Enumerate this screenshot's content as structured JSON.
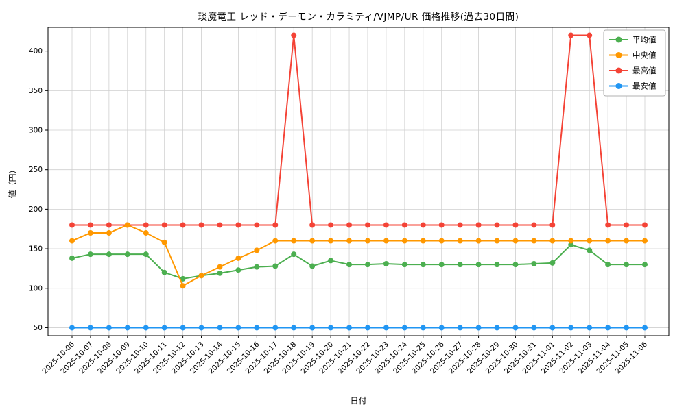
{
  "chart_data": {
    "type": "line",
    "title": "琰魔竜王 レッド・デーモン・カラミティ/VJMP/UR 価格推移(過去30日間)",
    "xlabel": "日付",
    "ylabel": "値（円）",
    "grid": true,
    "legend_position": "upper right",
    "ylim": [
      40,
      430
    ],
    "yticks": [
      50,
      100,
      150,
      200,
      250,
      300,
      350,
      400
    ],
    "categories": [
      "2025-10-06",
      "2025-10-07",
      "2025-10-08",
      "2025-10-09",
      "2025-10-10",
      "2025-10-11",
      "2025-10-12",
      "2025-10-13",
      "2025-10-14",
      "2025-10-15",
      "2025-10-16",
      "2025-10-17",
      "2025-10-18",
      "2025-10-19",
      "2025-10-20",
      "2025-10-21",
      "2025-10-22",
      "2025-10-23",
      "2025-10-24",
      "2025-10-25",
      "2025-10-26",
      "2025-10-27",
      "2025-10-28",
      "2025-10-29",
      "2025-10-30",
      "2025-10-31",
      "2025-11-01",
      "2025-11-02",
      "2025-11-03",
      "2025-11-04",
      "2025-11-05",
      "2025-11-06"
    ],
    "series": [
      {
        "name": "平均値",
        "color": "#4caf50",
        "values": [
          138,
          143,
          143,
          143,
          143,
          120,
          112,
          116,
          119,
          123,
          127,
          128,
          143,
          128,
          135,
          130,
          130,
          131,
          130,
          130,
          130,
          130,
          130,
          130,
          130,
          131,
          132,
          155,
          148,
          130,
          130,
          130
        ]
      },
      {
        "name": "中央値",
        "color": "#ff9800",
        "values": [
          160,
          170,
          170,
          180,
          170,
          158,
          103,
          116,
          127,
          138,
          148,
          160,
          160,
          160,
          160,
          160,
          160,
          160,
          160,
          160,
          160,
          160,
          160,
          160,
          160,
          160,
          160,
          160,
          160,
          160,
          160,
          160
        ]
      },
      {
        "name": "最高値",
        "color": "#f44336",
        "values": [
          180,
          180,
          180,
          180,
          180,
          180,
          180,
          180,
          180,
          180,
          180,
          180,
          420,
          180,
          180,
          180,
          180,
          180,
          180,
          180,
          180,
          180,
          180,
          180,
          180,
          180,
          180,
          420,
          420,
          180,
          180,
          180
        ]
      },
      {
        "name": "最安値",
        "color": "#2196f3",
        "values": [
          50,
          50,
          50,
          50,
          50,
          50,
          50,
          50,
          50,
          50,
          50,
          50,
          50,
          50,
          50,
          50,
          50,
          50,
          50,
          50,
          50,
          50,
          50,
          50,
          50,
          50,
          50,
          50,
          50,
          50,
          50,
          50
        ]
      }
    ],
    "draw_order": [
      "最高値",
      "平均値",
      "中央値",
      "最安値"
    ]
  }
}
